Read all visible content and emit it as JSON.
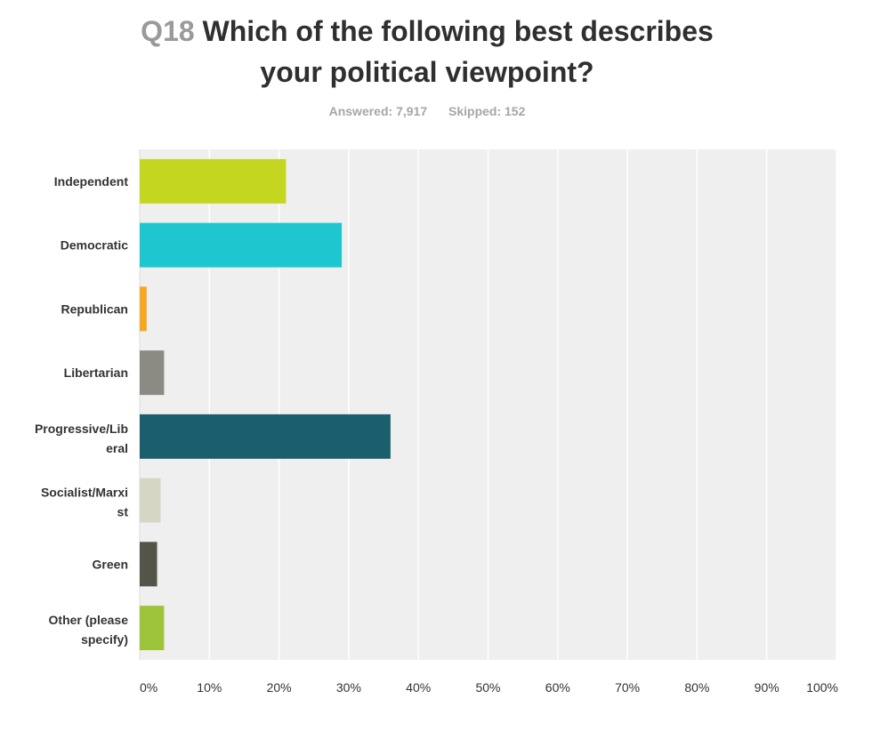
{
  "header": {
    "question_number": "Q18",
    "question_line1": "Which of the following best describes",
    "question_line2": "your political viewpoint?",
    "answered_label": "Answered: 7,917",
    "skipped_label": "Skipped: 152"
  },
  "chart_data": {
    "type": "bar",
    "orientation": "horizontal",
    "title": "Which of the following best describes your political viewpoint?",
    "xlabel": "",
    "ylabel": "",
    "categories": [
      [
        "Independent"
      ],
      [
        "Democratic"
      ],
      [
        "Republican"
      ],
      [
        "Libertarian"
      ],
      [
        "Progressive/Lib",
        "eral"
      ],
      [
        "Socialist/Marxi",
        "st"
      ],
      [
        "Green"
      ],
      [
        "Other (please",
        "specify)"
      ]
    ],
    "values": [
      21,
      29,
      1,
      3.5,
      36,
      3,
      2.5,
      3.5
    ],
    "colors": [
      "#c5d620",
      "#1ec7cf",
      "#f5a623",
      "#8b8b83",
      "#1b5e6e",
      "#d6d6c5",
      "#545448",
      "#9dc33a"
    ],
    "xlim": [
      0,
      100
    ],
    "ticks": [
      "0%",
      "10%",
      "20%",
      "30%",
      "40%",
      "50%",
      "60%",
      "70%",
      "80%",
      "90%",
      "100%"
    ],
    "grid": true,
    "plot_background": "#efefef"
  }
}
